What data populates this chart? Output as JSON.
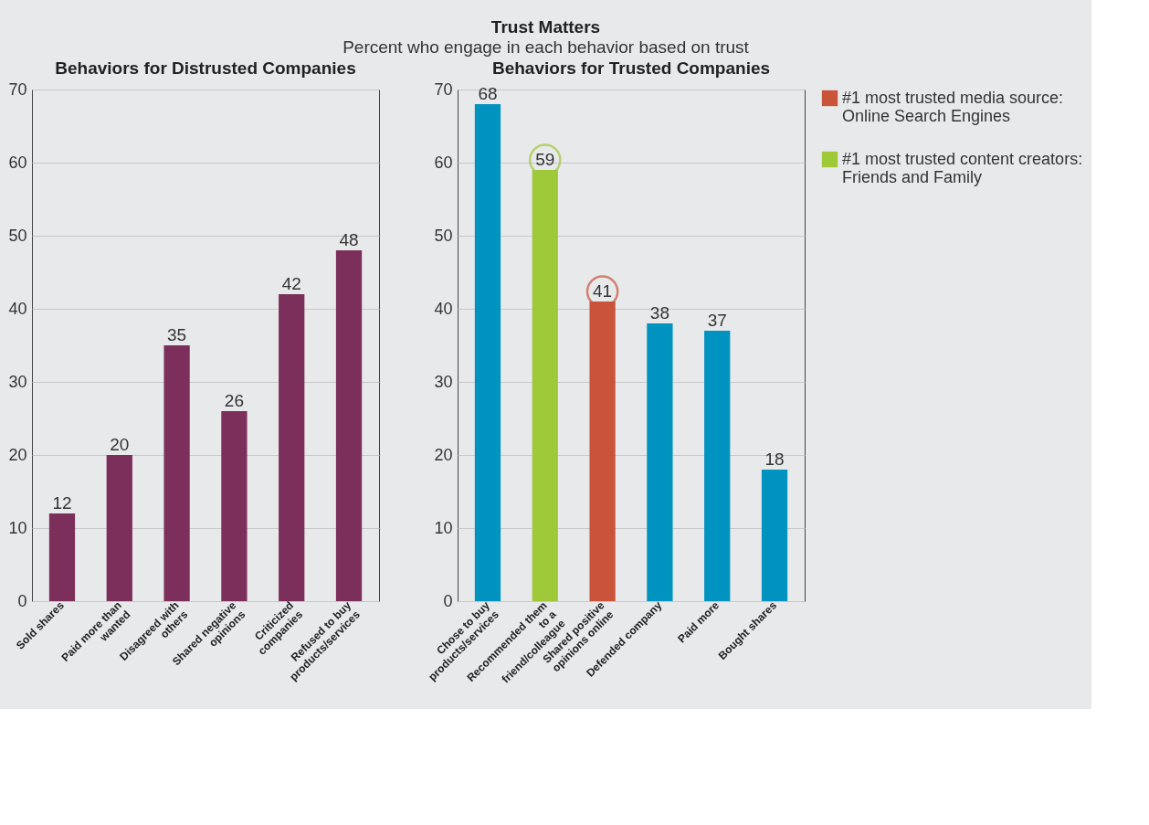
{
  "chart_data": [
    {
      "type": "bar",
      "title": "Behaviors for Distrusted Companies",
      "annotations": [
        "Trust Matters",
        "Percent who engage in each behavior based on trust"
      ],
      "categories": [
        "Sold shares",
        "Paid more than wanted",
        "Disagreed with others",
        "Shared negative opinions",
        "Criticized companies",
        "Refused to buy products/services"
      ],
      "series": [
        {
          "color": "#7b2f5a",
          "values": [
            12,
            20,
            35,
            26,
            42,
            48
          ]
        }
      ],
      "ylim": [
        0,
        70
      ],
      "yticks": [
        0,
        10,
        20,
        30,
        40,
        50,
        60,
        70
      ],
      "grid": "y",
      "data_labels": true
    },
    {
      "type": "bar",
      "title": "Behaviors for Trusted Companies",
      "categories": [
        "Chose to buy products/services",
        "Recommended them to a friend/colleague",
        "Shared positive opinions online",
        "Defended company",
        "Paid more",
        "Bought shares"
      ],
      "series": [
        {
          "name": "#1 most trusted media source: Online Search Engines",
          "color": "#c9543a",
          "values": [
            null,
            null,
            41,
            null,
            null,
            null
          ]
        },
        {
          "name": "#1 most trusted content creators: Friends and Family",
          "color": "#a0c93a",
          "values": [
            null,
            59,
            null,
            null,
            null,
            null
          ]
        },
        {
          "color": "#0093bf",
          "values": [
            68,
            null,
            null,
            38,
            37,
            18
          ]
        }
      ],
      "ylim": [
        0,
        70
      ],
      "yticks": [
        0,
        10,
        20,
        30,
        40,
        50,
        60,
        70
      ],
      "grid": "y",
      "data_labels": true,
      "legend": "right"
    }
  ]
}
